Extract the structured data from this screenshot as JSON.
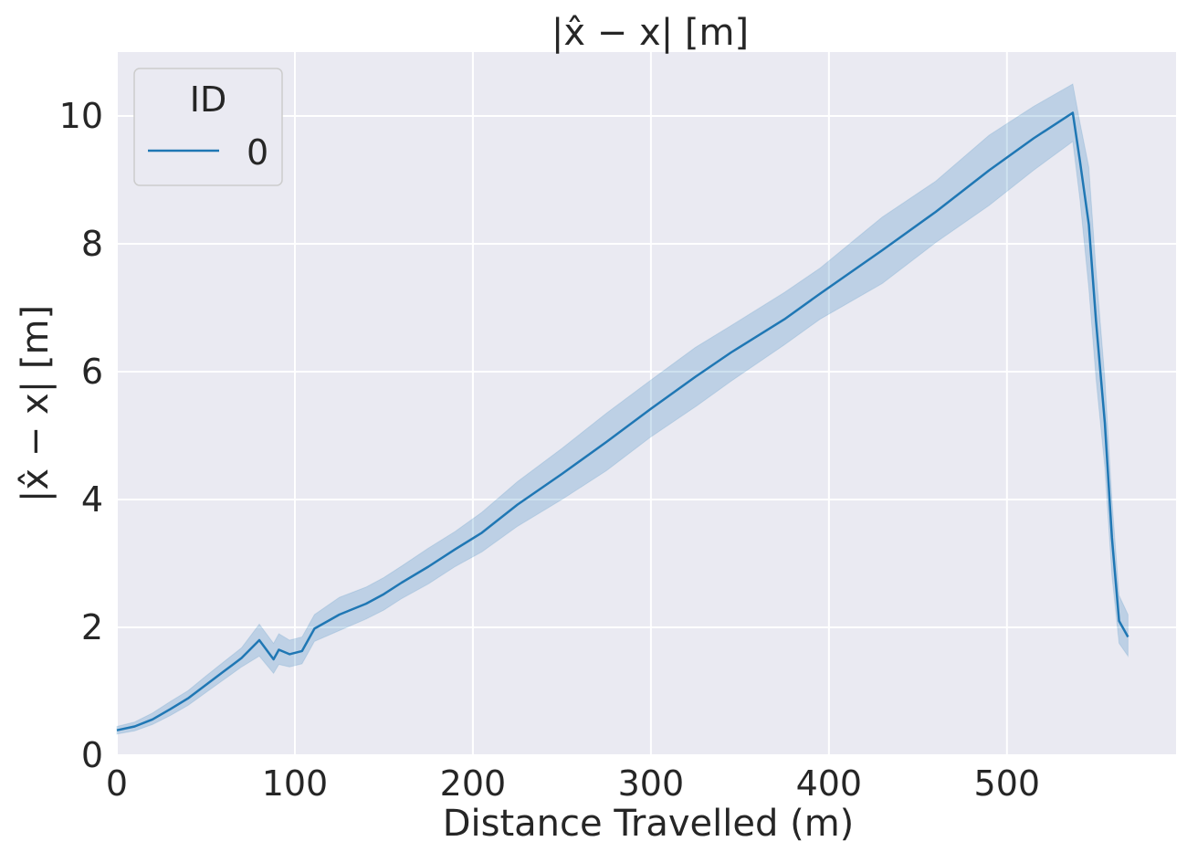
{
  "chart_data": {
    "type": "line",
    "title": "|x̂ − x| [m]",
    "xlabel": "Distance Travelled (m)",
    "ylabel": "|x̂ − x| [m]",
    "xlim": [
      0,
      595
    ],
    "ylim": [
      0,
      11
    ],
    "x_ticks": [
      0,
      100,
      200,
      300,
      400,
      500
    ],
    "y_ticks": [
      0,
      2,
      4,
      6,
      8,
      10
    ],
    "x_tick_labels": [
      "0",
      "100",
      "200",
      "300",
      "400",
      "500"
    ],
    "y_tick_labels": [
      "0",
      "2",
      "4",
      "6",
      "8",
      "10"
    ],
    "grid": true,
    "background": "#eaeaf2",
    "legend": {
      "title": "ID",
      "placement": "top-left",
      "entries": [
        "0"
      ]
    },
    "series": [
      {
        "name": "0",
        "color": "#1f77b4",
        "band_color": "#1f77b4",
        "x": [
          0,
          10,
          20,
          30,
          40,
          50,
          60,
          70,
          80,
          88,
          91,
          97,
          104,
          111,
          125,
          140,
          150,
          160,
          175,
          190,
          205,
          225,
          250,
          275,
          300,
          325,
          345,
          375,
          395,
          430,
          460,
          490,
          515,
          537,
          541,
          546,
          550,
          555,
          559,
          563,
          568
        ],
        "y": [
          0.39,
          0.45,
          0.56,
          0.72,
          0.89,
          1.1,
          1.31,
          1.52,
          1.8,
          1.5,
          1.65,
          1.58,
          1.63,
          1.98,
          2.2,
          2.37,
          2.52,
          2.7,
          2.95,
          3.22,
          3.48,
          3.92,
          4.4,
          4.9,
          5.42,
          5.92,
          6.3,
          6.82,
          7.22,
          7.9,
          8.5,
          9.15,
          9.65,
          10.05,
          9.3,
          8.3,
          6.8,
          5.2,
          3.4,
          2.1,
          1.85
        ],
        "y_low": [
          0.33,
          0.38,
          0.48,
          0.62,
          0.78,
          0.98,
          1.18,
          1.38,
          1.55,
          1.28,
          1.42,
          1.38,
          1.43,
          1.78,
          1.95,
          2.13,
          2.27,
          2.45,
          2.68,
          2.95,
          3.18,
          3.58,
          4.0,
          4.45,
          4.98,
          5.45,
          5.85,
          6.42,
          6.82,
          7.38,
          8.02,
          8.6,
          9.15,
          9.6,
          8.7,
          7.3,
          5.9,
          4.5,
          2.8,
          1.75,
          1.55
        ],
        "y_high": [
          0.45,
          0.52,
          0.66,
          0.84,
          1.01,
          1.24,
          1.46,
          1.68,
          2.05,
          1.75,
          1.9,
          1.8,
          1.85,
          2.2,
          2.47,
          2.63,
          2.78,
          2.96,
          3.24,
          3.5,
          3.8,
          4.28,
          4.8,
          5.35,
          5.87,
          6.38,
          6.72,
          7.24,
          7.62,
          8.42,
          8.98,
          9.7,
          10.15,
          10.5,
          9.9,
          9.2,
          7.6,
          5.9,
          4.0,
          2.5,
          2.2
        ]
      }
    ]
  }
}
